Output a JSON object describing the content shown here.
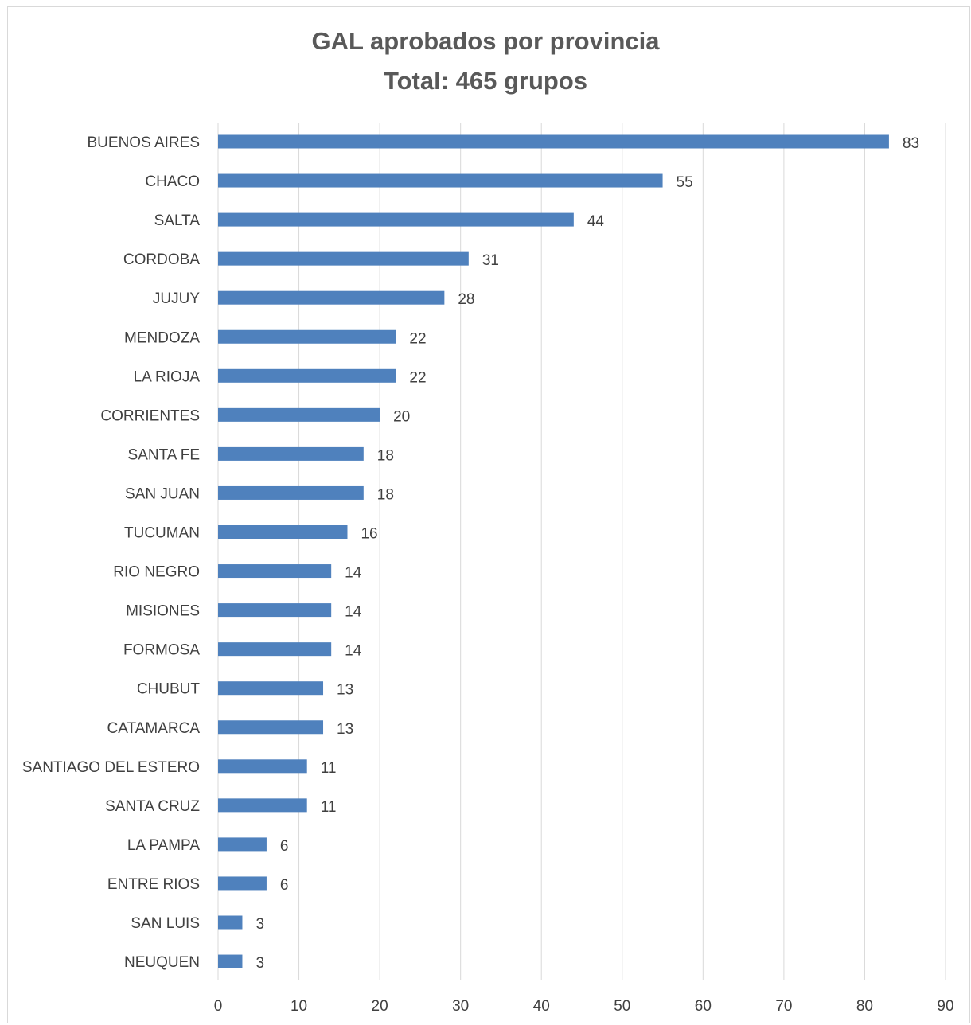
{
  "chart_data": {
    "type": "bar",
    "orientation": "horizontal",
    "title": "GAL aprobados por provincia",
    "subtitle": "Total: 465 grupos",
    "categories": [
      "BUENOS AIRES",
      "CHACO",
      "SALTA",
      "CORDOBA",
      "JUJUY",
      "MENDOZA",
      "LA RIOJA",
      "CORRIENTES",
      "SANTA FE",
      "SAN JUAN",
      "TUCUMAN",
      "RIO NEGRO",
      "MISIONES",
      "FORMOSA",
      "CHUBUT",
      "CATAMARCA",
      "SANTIAGO DEL ESTERO",
      "SANTA CRUZ",
      "LA PAMPA",
      "ENTRE RIOS",
      "SAN LUIS",
      "NEUQUEN"
    ],
    "values": [
      83,
      55,
      44,
      31,
      28,
      22,
      22,
      20,
      18,
      18,
      16,
      14,
      14,
      14,
      13,
      13,
      11,
      11,
      6,
      6,
      3,
      3
    ],
    "xlim": [
      0,
      90
    ],
    "xticks": [
      0,
      10,
      20,
      30,
      40,
      50,
      60,
      70,
      80,
      90
    ],
    "grid": true,
    "data_labels": true,
    "bar_color": "#4f81bd",
    "grid_color": "#d9d9d9"
  }
}
